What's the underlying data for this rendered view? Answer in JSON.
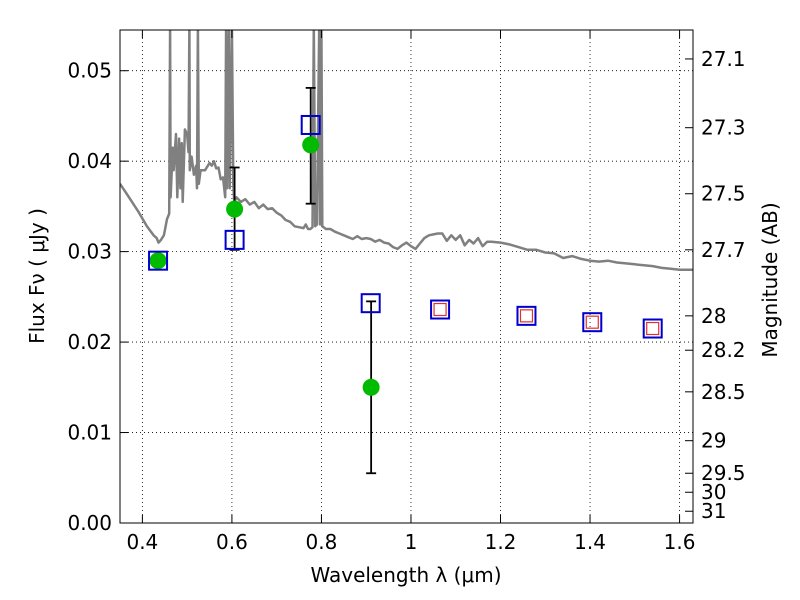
{
  "chart_data": {
    "type": "scatter",
    "xlabel": "Wavelength  λ (μm)",
    "ylabel": "Flux  Fν  ( μJy )",
    "y2label": "Magnitude (AB)",
    "xlim": [
      0.35,
      1.63
    ],
    "ylim": [
      0.0,
      0.0545
    ],
    "grid": true,
    "x_ticks": [
      0.4,
      0.6,
      0.8,
      1.0,
      1.2,
      1.4,
      1.6
    ],
    "x_tick_labels": [
      "0.4",
      "0.6",
      "0.8",
      "1",
      "1.2",
      "1.4",
      "1.6"
    ],
    "y_ticks": [
      0.0,
      0.01,
      0.02,
      0.03,
      0.04,
      0.05
    ],
    "y_tick_labels": [
      "0.00",
      "0.01",
      "0.02",
      "0.03",
      "0.04",
      "0.05"
    ],
    "mag_ticks": [
      {
        "flux": 0.0513,
        "label": "27.1"
      },
      {
        "flux": 0.0437,
        "label": "27.3"
      },
      {
        "flux": 0.0364,
        "label": "27.5"
      },
      {
        "flux": 0.0302,
        "label": "27.7"
      },
      {
        "flux": 0.0229,
        "label": "28"
      },
      {
        "flux": 0.0191,
        "label": "28.2"
      },
      {
        "flux": 0.0145,
        "label": "28.5"
      },
      {
        "flux": 0.0091,
        "label": "29"
      },
      {
        "flux": 0.0055,
        "label": "29.5"
      },
      {
        "flux": 0.0034,
        "label": "30"
      },
      {
        "flux": 0.0013,
        "label": "31"
      }
    ],
    "series": [
      {
        "kind": "line",
        "color": "#808080",
        "points": [
          [
            0.35,
            0.0375
          ],
          [
            0.37,
            0.036
          ],
          [
            0.39,
            0.0345
          ],
          [
            0.41,
            0.0328
          ],
          [
            0.425,
            0.0318
          ],
          [
            0.432,
            0.0315
          ],
          [
            0.436,
            0.031
          ],
          [
            0.44,
            0.0312
          ],
          [
            0.448,
            0.0318
          ],
          [
            0.455,
            0.0336
          ],
          [
            0.46,
            0.0342
          ],
          [
            0.462,
            0.055
          ],
          [
            0.463,
            0.036
          ],
          [
            0.468,
            0.0415
          ],
          [
            0.47,
            0.039
          ],
          [
            0.475,
            0.043
          ],
          [
            0.478,
            0.036
          ],
          [
            0.482,
            0.0425
          ],
          [
            0.485,
            0.037
          ],
          [
            0.488,
            0.042
          ],
          [
            0.49,
            0.0355
          ],
          [
            0.495,
            0.0435
          ],
          [
            0.5,
            0.043
          ],
          [
            0.503,
            0.041
          ],
          [
            0.505,
            0.055
          ],
          [
            0.506,
            0.039
          ],
          [
            0.51,
            0.0405
          ],
          [
            0.515,
            0.0385
          ],
          [
            0.52,
            0.0395
          ],
          [
            0.522,
            0.037
          ],
          [
            0.524,
            0.055
          ],
          [
            0.526,
            0.0375
          ],
          [
            0.53,
            0.039
          ],
          [
            0.54,
            0.039
          ],
          [
            0.55,
            0.0398
          ],
          [
            0.555,
            0.0395
          ],
          [
            0.56,
            0.04
          ],
          [
            0.565,
            0.0392
          ],
          [
            0.57,
            0.0393
          ],
          [
            0.575,
            0.038
          ],
          [
            0.58,
            0.0382
          ],
          [
            0.585,
            0.036
          ],
          [
            0.587,
            0.055
          ],
          [
            0.589,
            0.037
          ],
          [
            0.593,
            0.055
          ],
          [
            0.595,
            0.037
          ],
          [
            0.6,
            0.055
          ],
          [
            0.603,
            0.0375
          ],
          [
            0.605,
            0.0355
          ],
          [
            0.61,
            0.036
          ],
          [
            0.62,
            0.0355
          ],
          [
            0.63,
            0.0358
          ],
          [
            0.64,
            0.0352
          ],
          [
            0.65,
            0.0355
          ],
          [
            0.66,
            0.0348
          ],
          [
            0.67,
            0.0352
          ],
          [
            0.68,
            0.0347
          ],
          [
            0.69,
            0.0348
          ],
          [
            0.7,
            0.0343
          ],
          [
            0.71,
            0.034
          ],
          [
            0.72,
            0.0335
          ],
          [
            0.73,
            0.0333
          ],
          [
            0.74,
            0.0328
          ],
          [
            0.75,
            0.0327
          ],
          [
            0.76,
            0.0326
          ],
          [
            0.765,
            0.033
          ],
          [
            0.77,
            0.0325
          ],
          [
            0.775,
            0.0325
          ],
          [
            0.78,
            0.0327
          ],
          [
            0.783,
            0.055
          ],
          [
            0.786,
            0.0328
          ],
          [
            0.79,
            0.033
          ],
          [
            0.795,
            0.055
          ],
          [
            0.797,
            0.033
          ],
          [
            0.8,
            0.055
          ],
          [
            0.802,
            0.0328
          ],
          [
            0.81,
            0.0325
          ],
          [
            0.82,
            0.0325
          ],
          [
            0.83,
            0.0322
          ],
          [
            0.84,
            0.032
          ],
          [
            0.85,
            0.0318
          ],
          [
            0.86,
            0.0316
          ],
          [
            0.87,
            0.0314
          ],
          [
            0.88,
            0.0317
          ],
          [
            0.89,
            0.0314
          ],
          [
            0.9,
            0.0315
          ],
          [
            0.91,
            0.0314
          ],
          [
            0.92,
            0.0311
          ],
          [
            0.93,
            0.0313
          ],
          [
            0.94,
            0.031
          ],
          [
            0.95,
            0.0309
          ],
          [
            0.96,
            0.0305
          ],
          [
            0.97,
            0.0303
          ],
          [
            0.98,
            0.0307
          ],
          [
            0.99,
            0.031
          ],
          [
            1.0,
            0.0306
          ],
          [
            1.01,
            0.0303
          ],
          [
            1.02,
            0.0309
          ],
          [
            1.03,
            0.0315
          ],
          [
            1.04,
            0.0318
          ],
          [
            1.05,
            0.0319
          ],
          [
            1.06,
            0.032
          ],
          [
            1.07,
            0.032
          ],
          [
            1.08,
            0.0312
          ],
          [
            1.09,
            0.0318
          ],
          [
            1.1,
            0.0313
          ],
          [
            1.11,
            0.0318
          ],
          [
            1.12,
            0.0307
          ],
          [
            1.13,
            0.0313
          ],
          [
            1.14,
            0.0309
          ],
          [
            1.15,
            0.0315
          ],
          [
            1.16,
            0.0306
          ],
          [
            1.17,
            0.0311
          ],
          [
            1.18,
            0.0311
          ],
          [
            1.2,
            0.031
          ],
          [
            1.22,
            0.0308
          ],
          [
            1.24,
            0.0305
          ],
          [
            1.26,
            0.0302
          ],
          [
            1.28,
            0.0302
          ],
          [
            1.3,
            0.0299
          ],
          [
            1.32,
            0.0298
          ],
          [
            1.34,
            0.0293
          ],
          [
            1.36,
            0.0295
          ],
          [
            1.38,
            0.0292
          ],
          [
            1.4,
            0.029
          ],
          [
            1.42,
            0.0289
          ],
          [
            1.44,
            0.029
          ],
          [
            1.46,
            0.0288
          ],
          [
            1.48,
            0.0287
          ],
          [
            1.5,
            0.0286
          ],
          [
            1.52,
            0.0285
          ],
          [
            1.54,
            0.0284
          ],
          [
            1.56,
            0.0282
          ],
          [
            1.58,
            0.0281
          ],
          [
            1.6,
            0.028
          ],
          [
            1.63,
            0.028
          ]
        ]
      },
      {
        "kind": "errorbar",
        "color": "#000000",
        "points": [
          {
            "x": 0.606,
            "ylo": 0.0302,
            "yhi": 0.0393
          },
          {
            "x": 0.776,
            "ylo": 0.0353,
            "yhi": 0.0481
          },
          {
            "x": 0.911,
            "ylo": 0.0055,
            "yhi": 0.0245
          }
        ]
      },
      {
        "kind": "points",
        "marker": "circle",
        "color": "#00bb00",
        "points": [
          [
            0.435,
            0.029
          ],
          [
            0.606,
            0.0347
          ],
          [
            0.776,
            0.0418
          ],
          [
            0.911,
            0.015
          ]
        ]
      },
      {
        "kind": "points",
        "marker": "square-large",
        "color": "#0000cc",
        "points": [
          [
            0.435,
            0.029
          ],
          [
            0.606,
            0.0313
          ],
          [
            0.776,
            0.044
          ],
          [
            0.91,
            0.0243
          ],
          [
            1.065,
            0.0236
          ],
          [
            1.258,
            0.0229
          ],
          [
            1.405,
            0.0222
          ],
          [
            1.54,
            0.0215
          ]
        ]
      },
      {
        "kind": "points",
        "marker": "square-small",
        "color": "#e03030",
        "points": [
          [
            1.065,
            0.0236
          ],
          [
            1.258,
            0.0229
          ],
          [
            1.405,
            0.0222
          ],
          [
            1.54,
            0.0215
          ]
        ]
      }
    ]
  }
}
